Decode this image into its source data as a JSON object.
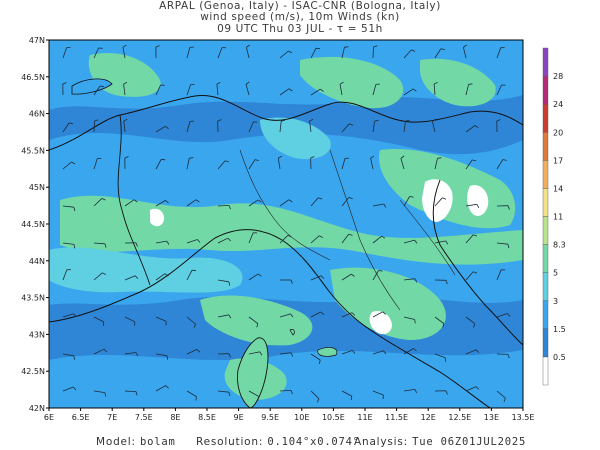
{
  "header": {
    "line1": "ARPAL (Genoa, Italy)  -  ISAC-CNR (Bologna, Italy)",
    "line2": "wind speed (m/s), 10m Winds (kn)",
    "line3": "09 UTC Thu 03 JUL  -  τ = 51h"
  },
  "axes": {
    "lat_labels": [
      "47N",
      "46.5N",
      "46N",
      "45.5N",
      "45N",
      "44.5N",
      "44N",
      "43.5N",
      "43N",
      "42.5N",
      "42N"
    ],
    "lon_labels": [
      "6E",
      "6.5E",
      "7E",
      "7.5E",
      "8E",
      "8.5E",
      "9E",
      "9.5E",
      "10E",
      "10.5E",
      "11E",
      "11.5E",
      "12E",
      "12.5E",
      "13E",
      "13.5E"
    ],
    "lat_range": [
      42,
      47
    ],
    "lon_range": [
      6,
      13.5
    ]
  },
  "colorbar": {
    "levels": [
      "0.5",
      "1.5",
      "3",
      "5",
      "8.3",
      "11",
      "14",
      "17",
      "20",
      "24",
      "28"
    ],
    "colors": [
      "#ffffff",
      "#2f86d6",
      "#3aa6ee",
      "#5fcfe2",
      "#72d9a6",
      "#b9e38c",
      "#f2e08a",
      "#f0b060",
      "#e07a3a",
      "#cc3c30",
      "#b52a7a",
      "#8a44c2"
    ]
  },
  "footer": {
    "model_label": "Model:",
    "model_value": "bolam",
    "resolution_label": "Resolution:",
    "resolution_value": "0.104°x0.074°",
    "analysis_label": "Analysis:",
    "analysis_value": "Tue 06Z01JUL2025"
  },
  "colors": {
    "water_blue": "#2f86d6",
    "light_blue": "#3aa6ee",
    "cyan": "#5fcfe2",
    "green": "#72d9a6",
    "frame": "#000000"
  }
}
